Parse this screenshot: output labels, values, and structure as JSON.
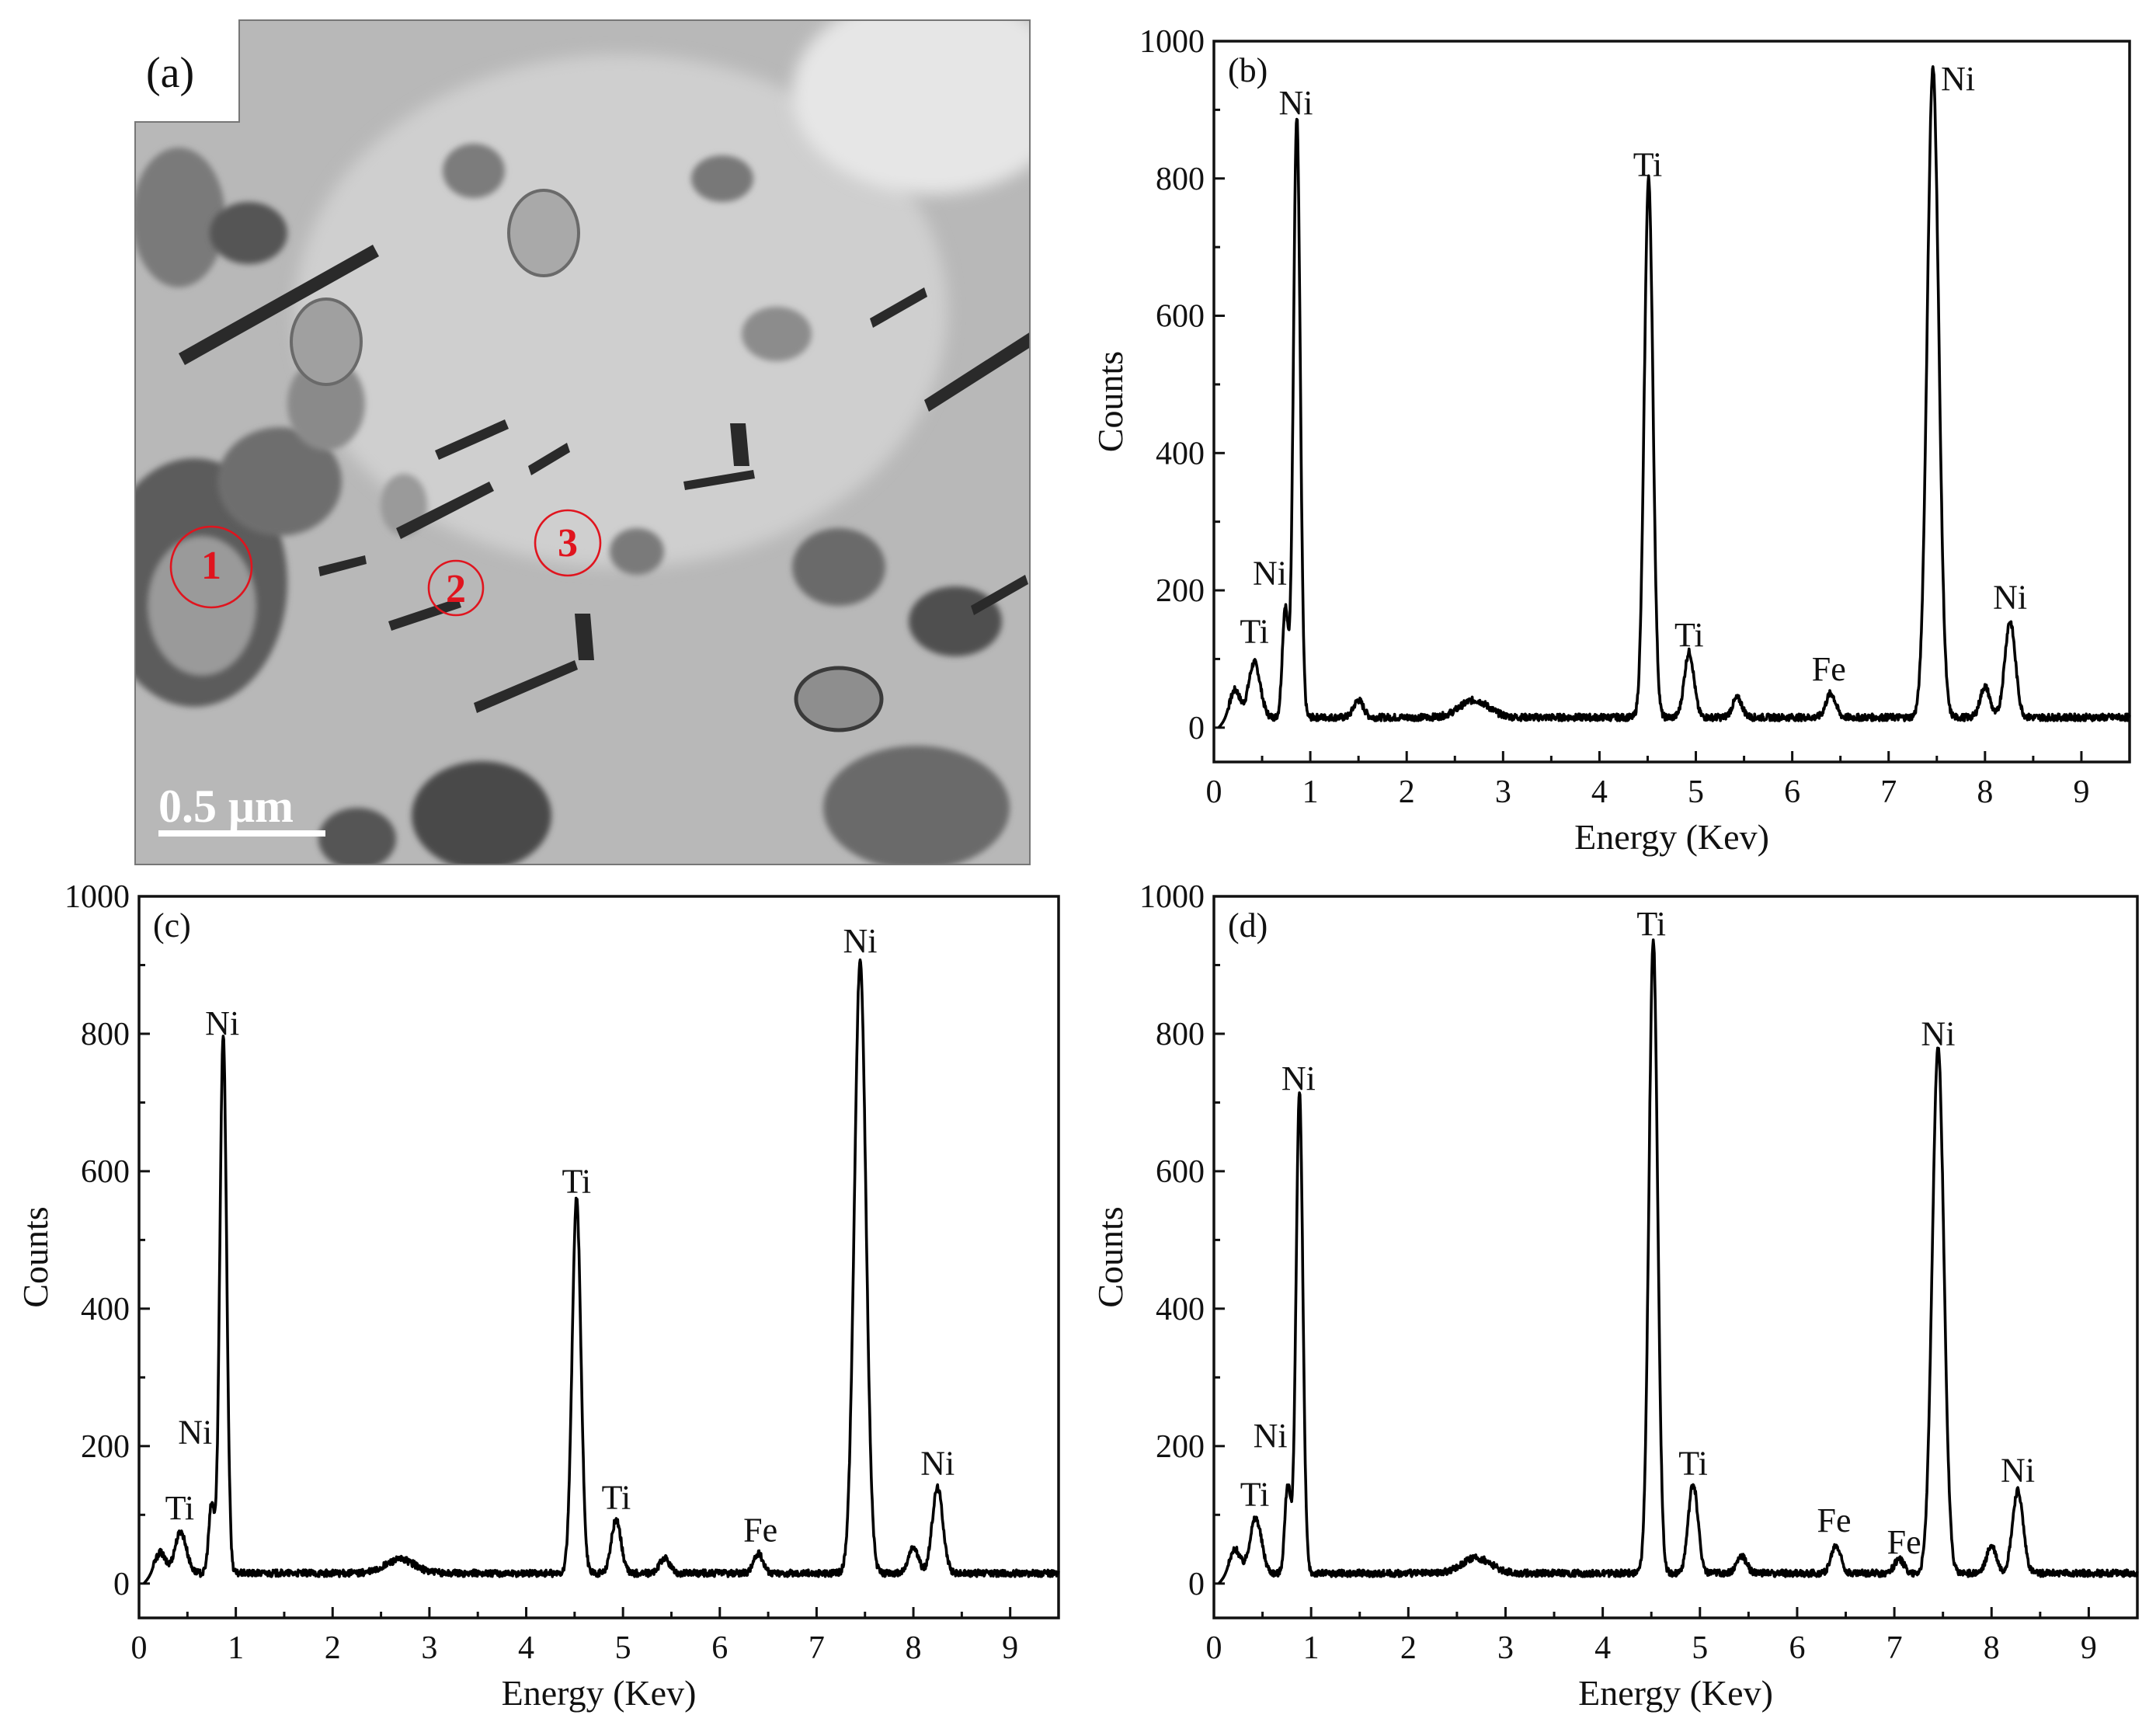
{
  "micrograph": {
    "panel_label": "(a)",
    "scale_bar_label": "0.5 μm",
    "sites": [
      {
        "label": "1",
        "color": "#e0141e"
      },
      {
        "label": "2",
        "color": "#e0141e"
      },
      {
        "label": "3",
        "color": "#e0141e"
      }
    ]
  },
  "chart_data": [
    {
      "type": "line",
      "panel": "(b)",
      "xlabel": "Energy (Kev)",
      "ylabel": "Counts",
      "xlim": [
        0,
        9.5
      ],
      "ylim": [
        -50,
        1000
      ],
      "xticks": [
        "0",
        "1",
        "2",
        "3",
        "4",
        "5",
        "6",
        "7",
        "8",
        "9"
      ],
      "yticks": [
        "0",
        "200",
        "400",
        "600",
        "800",
        "1000"
      ],
      "baseline": 15,
      "peaks": [
        {
          "x": 0.22,
          "y": 40,
          "w": 0.05
        },
        {
          "x": 0.42,
          "y": 80,
          "w": 0.06
        },
        {
          "x": 0.74,
          "y": 160,
          "w": 0.03
        },
        {
          "x": 0.86,
          "y": 875,
          "w": 0.035
        },
        {
          "x": 1.5,
          "y": 25,
          "w": 0.05
        },
        {
          "x": 2.7,
          "y": 25,
          "w": 0.15
        },
        {
          "x": 4.51,
          "y": 785,
          "w": 0.045
        },
        {
          "x": 4.93,
          "y": 95,
          "w": 0.05
        },
        {
          "x": 5.43,
          "y": 28,
          "w": 0.05
        },
        {
          "x": 6.4,
          "y": 35,
          "w": 0.05
        },
        {
          "x": 7.46,
          "y": 945,
          "w": 0.06
        },
        {
          "x": 8.0,
          "y": 45,
          "w": 0.05
        },
        {
          "x": 8.26,
          "y": 140,
          "w": 0.055
        }
      ],
      "annotations": [
        {
          "text": "Ni",
          "x": 0.85,
          "y": 880
        },
        {
          "text": "Ni",
          "x": 0.58,
          "y": 195
        },
        {
          "text": "Ti",
          "x": 0.42,
          "y": 110
        },
        {
          "text": "Ti",
          "x": 4.5,
          "y": 790
        },
        {
          "text": "Ti",
          "x": 4.93,
          "y": 105
        },
        {
          "text": "Fe",
          "x": 6.38,
          "y": 55
        },
        {
          "text": "Ni",
          "x": 7.72,
          "y": 915
        },
        {
          "text": "Ni",
          "x": 8.26,
          "y": 160
        }
      ]
    },
    {
      "type": "line",
      "panel": "(c)",
      "xlabel": "Energy (Kev)",
      "ylabel": "Counts",
      "xlim": [
        0,
        9.5
      ],
      "ylim": [
        -50,
        1000
      ],
      "xticks": [
        "0",
        "1",
        "2",
        "3",
        "4",
        "5",
        "6",
        "7",
        "8",
        "9"
      ],
      "yticks": [
        "0",
        "200",
        "400",
        "600",
        "800",
        "1000"
      ],
      "baseline": 15,
      "peaks": [
        {
          "x": 0.22,
          "y": 30,
          "w": 0.05
        },
        {
          "x": 0.43,
          "y": 60,
          "w": 0.06
        },
        {
          "x": 0.75,
          "y": 100,
          "w": 0.03
        },
        {
          "x": 0.87,
          "y": 785,
          "w": 0.035
        },
        {
          "x": 2.7,
          "y": 20,
          "w": 0.15
        },
        {
          "x": 4.52,
          "y": 545,
          "w": 0.045
        },
        {
          "x": 4.93,
          "y": 78,
          "w": 0.05
        },
        {
          "x": 5.43,
          "y": 22,
          "w": 0.05
        },
        {
          "x": 6.4,
          "y": 28,
          "w": 0.05
        },
        {
          "x": 7.45,
          "y": 890,
          "w": 0.06
        },
        {
          "x": 8.0,
          "y": 38,
          "w": 0.05
        },
        {
          "x": 8.25,
          "y": 125,
          "w": 0.055
        }
      ],
      "annotations": [
        {
          "text": "Ni",
          "x": 0.86,
          "y": 785
        },
        {
          "text": "Ni",
          "x": 0.58,
          "y": 190
        },
        {
          "text": "Ti",
          "x": 0.42,
          "y": 80
        },
        {
          "text": "Ti",
          "x": 4.52,
          "y": 555
        },
        {
          "text": "Ti",
          "x": 4.93,
          "y": 95
        },
        {
          "text": "Fe",
          "x": 6.42,
          "y": 48
        },
        {
          "text": "Ni",
          "x": 7.45,
          "y": 905
        },
        {
          "text": "Ni",
          "x": 8.25,
          "y": 145
        }
      ]
    },
    {
      "type": "line",
      "panel": "(d)",
      "xlabel": "Energy (Kev)",
      "ylabel": "Counts",
      "xlim": [
        0,
        9.5
      ],
      "ylim": [
        -50,
        1000
      ],
      "xticks": [
        "0",
        "1",
        "2",
        "3",
        "4",
        "5",
        "6",
        "7",
        "8",
        "9"
      ],
      "yticks": [
        "0",
        "200",
        "400",
        "600",
        "800",
        "1000"
      ],
      "baseline": 15,
      "peaks": [
        {
          "x": 0.22,
          "y": 35,
          "w": 0.05
        },
        {
          "x": 0.43,
          "y": 80,
          "w": 0.06
        },
        {
          "x": 0.76,
          "y": 130,
          "w": 0.03
        },
        {
          "x": 0.88,
          "y": 700,
          "w": 0.035
        },
        {
          "x": 2.7,
          "y": 22,
          "w": 0.15
        },
        {
          "x": 4.52,
          "y": 920,
          "w": 0.045
        },
        {
          "x": 4.93,
          "y": 130,
          "w": 0.05
        },
        {
          "x": 5.43,
          "y": 25,
          "w": 0.05
        },
        {
          "x": 6.4,
          "y": 40,
          "w": 0.05
        },
        {
          "x": 7.05,
          "y": 20,
          "w": 0.05
        },
        {
          "x": 7.45,
          "y": 765,
          "w": 0.06
        },
        {
          "x": 8.0,
          "y": 40,
          "w": 0.05
        },
        {
          "x": 8.27,
          "y": 120,
          "w": 0.055
        }
      ],
      "annotations": [
        {
          "text": "Ni",
          "x": 0.87,
          "y": 705
        },
        {
          "text": "Ni",
          "x": 0.58,
          "y": 185
        },
        {
          "text": "Ti",
          "x": 0.42,
          "y": 100
        },
        {
          "text": "Ti",
          "x": 4.5,
          "y": 930
        },
        {
          "text": "Ti",
          "x": 4.93,
          "y": 145
        },
        {
          "text": "Fe",
          "x": 6.38,
          "y": 62
        },
        {
          "text": "Fe",
          "x": 7.1,
          "y": 30
        },
        {
          "text": "Ni",
          "x": 7.45,
          "y": 770
        },
        {
          "text": "Ni",
          "x": 8.27,
          "y": 135
        }
      ]
    }
  ]
}
